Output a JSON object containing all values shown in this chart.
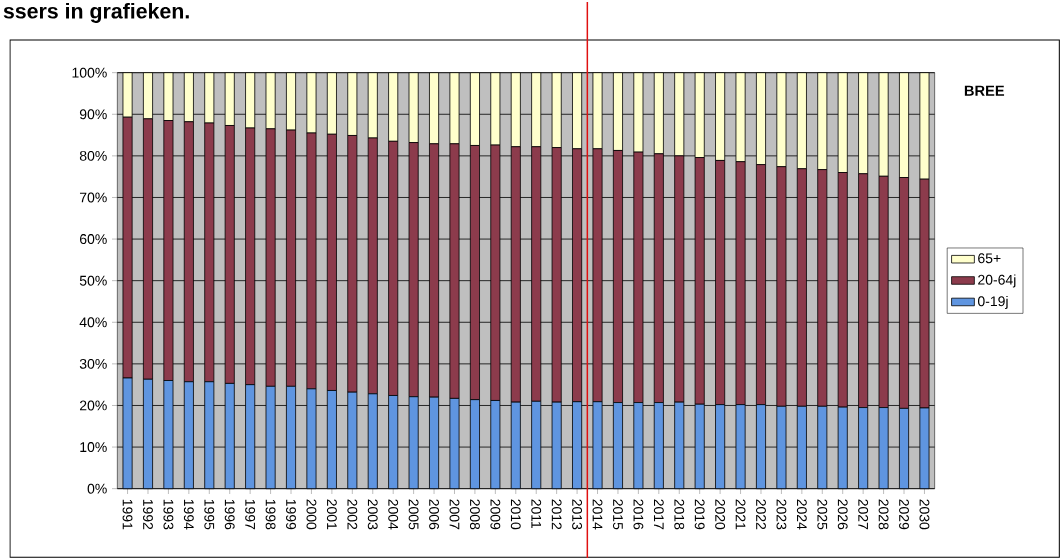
{
  "chart_data": {
    "type": "bar",
    "stacked": true,
    "title": "ssers in grafieken.",
    "annotations": [
      "BREE"
    ],
    "x": [
      1991,
      1992,
      1993,
      1994,
      1995,
      1996,
      1997,
      1998,
      1999,
      2000,
      2001,
      2002,
      2003,
      2004,
      2005,
      2006,
      2007,
      2008,
      2009,
      2010,
      2011,
      2012,
      2013,
      2014,
      2015,
      2016,
      2017,
      2018,
      2019,
      2020,
      2021,
      2022,
      2023,
      2024,
      2025,
      2026,
      2027,
      2028,
      2029,
      2030
    ],
    "series": [
      {
        "name": "0-19j",
        "color": "#5f95e0",
        "values": [
          26.6,
          26.3,
          26.0,
          25.7,
          25.7,
          25.3,
          25.0,
          24.6,
          24.6,
          24.0,
          23.6,
          23.2,
          22.8,
          22.4,
          22.1,
          22.0,
          21.7,
          21.4,
          21.2,
          20.8,
          21.0,
          20.8,
          20.9,
          20.9,
          20.7,
          20.7,
          20.7,
          20.8,
          20.3,
          20.2,
          20.2,
          20.2,
          19.8,
          19.8,
          19.8,
          19.6,
          19.5,
          19.5,
          19.3,
          19.4
        ]
      },
      {
        "name": "20-64j",
        "color": "#8c3b4c",
        "values": [
          62.7,
          62.6,
          62.5,
          62.5,
          62.2,
          62.0,
          61.7,
          61.9,
          61.6,
          61.5,
          61.6,
          61.7,
          61.5,
          61.1,
          61.1,
          60.9,
          61.2,
          61.1,
          61.4,
          61.4,
          61.2,
          61.2,
          60.8,
          60.8,
          60.6,
          60.2,
          59.8,
          59.2,
          59.3,
          58.7,
          58.4,
          57.7,
          57.6,
          57.1,
          56.9,
          56.4,
          56.2,
          55.6,
          55.5,
          55.0
        ]
      },
      {
        "name": "65+",
        "color": "#ffffcc",
        "values": [
          10.7,
          11.1,
          11.5,
          11.8,
          12.1,
          12.7,
          13.3,
          13.5,
          13.8,
          14.5,
          14.8,
          15.1,
          15.7,
          16.5,
          16.8,
          17.1,
          17.1,
          17.5,
          17.4,
          17.8,
          17.8,
          18.0,
          18.3,
          18.3,
          18.7,
          19.1,
          19.5,
          20.0,
          20.4,
          21.1,
          21.4,
          22.1,
          22.6,
          23.1,
          23.3,
          24.0,
          24.3,
          24.9,
          25.2,
          25.6
        ]
      }
    ],
    "xlim": [
      1990.5,
      2030.5
    ],
    "xticks": [
      1991,
      1992,
      1993,
      1994,
      1995,
      1996,
      1997,
      1998,
      1999,
      2000,
      2001,
      2002,
      2003,
      2004,
      2005,
      2006,
      2007,
      2008,
      2009,
      2010,
      2011,
      2012,
      2013,
      2014,
      2015,
      2016,
      2017,
      2018,
      2019,
      2020,
      2021,
      2022,
      2023,
      2024,
      2025,
      2026,
      2027,
      2028,
      2029,
      2030
    ],
    "ylim": [
      0,
      100
    ],
    "yticks": [
      {
        "value": 0,
        "label": "0%"
      },
      {
        "value": 10,
        "label": "10%"
      },
      {
        "value": 20,
        "label": "20%"
      },
      {
        "value": 30,
        "label": "30%"
      },
      {
        "value": 40,
        "label": "40%"
      },
      {
        "value": 50,
        "label": "50%"
      },
      {
        "value": 60,
        "label": "60%"
      },
      {
        "value": 70,
        "label": "70%"
      },
      {
        "value": 80,
        "label": "80%"
      },
      {
        "value": 90,
        "label": "90%"
      },
      {
        "value": 100,
        "label": "100%"
      }
    ],
    "ref_lines": [
      {
        "axis": "x",
        "value": 2013.5,
        "color": "#e01010"
      }
    ],
    "grid": "y",
    "legend": "right"
  }
}
